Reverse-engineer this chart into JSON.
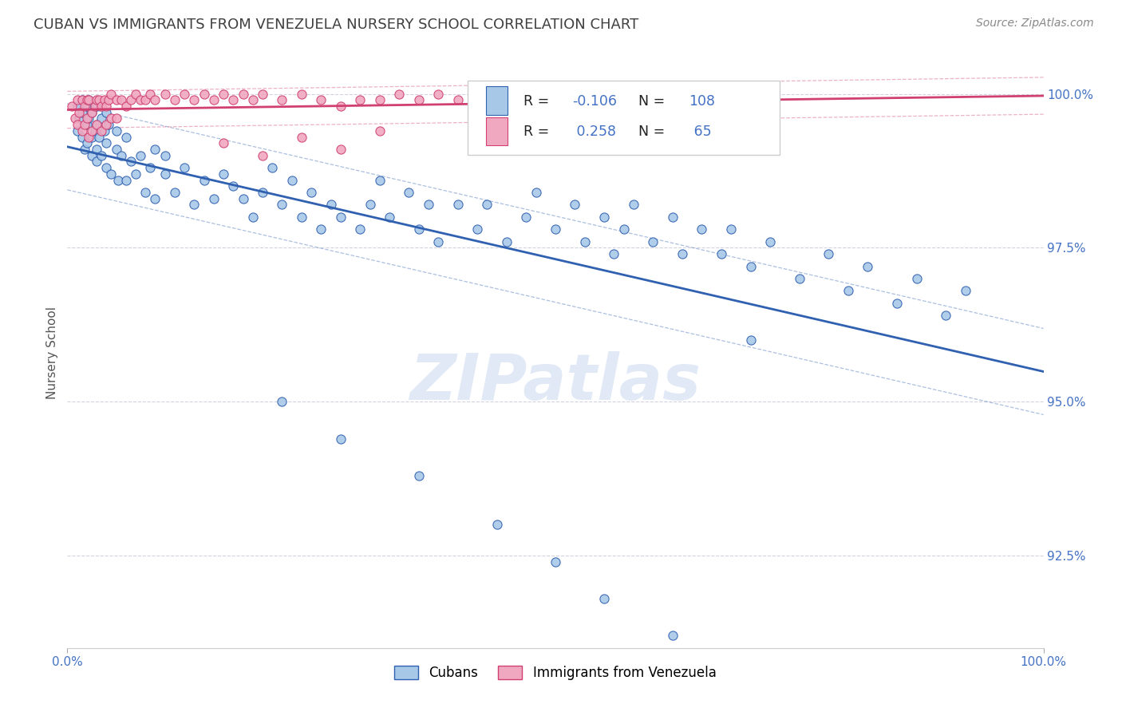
{
  "title": "CUBAN VS IMMIGRANTS FROM VENEZUELA NURSERY SCHOOL CORRELATION CHART",
  "source_text": "Source: ZipAtlas.com",
  "ylabel": "Nursery School",
  "legend_label1": "Cubans",
  "legend_label2": "Immigrants from Venezuela",
  "R1": -0.106,
  "N1": 108,
  "R2": 0.258,
  "N2": 65,
  "color1": "#a8c8e8",
  "color2": "#f0a8c0",
  "line_color1": "#3060b0",
  "line_color2": "#d04070",
  "background_color": "#ffffff",
  "plot_bg_color": "#ffffff",
  "grid_color": "#c8c8d8",
  "title_color": "#404040",
  "title_fontsize": 13,
  "axis_label_color": "#4472c4",
  "xmin": 0.0,
  "xmax": 1.0,
  "ymin": 0.91,
  "ymax": 1.006,
  "yticks": [
    0.925,
    0.95,
    0.975,
    1.0
  ],
  "ytick_labels": [
    "92.5%",
    "95.0%",
    "97.5%",
    "100.0%"
  ],
  "xticks": [
    0.0,
    1.0
  ],
  "xtick_labels": [
    "0.0%",
    "100.0%"
  ],
  "cubans_x": [
    0.01,
    0.01,
    0.012,
    0.015,
    0.015,
    0.015,
    0.018,
    0.02,
    0.02,
    0.02,
    0.022,
    0.022,
    0.025,
    0.025,
    0.025,
    0.028,
    0.028,
    0.03,
    0.03,
    0.03,
    0.03,
    0.032,
    0.035,
    0.035,
    0.038,
    0.04,
    0.04,
    0.04,
    0.042,
    0.045,
    0.05,
    0.05,
    0.052,
    0.055,
    0.06,
    0.06,
    0.065,
    0.07,
    0.075,
    0.08,
    0.085,
    0.09,
    0.09,
    0.1,
    0.1,
    0.11,
    0.12,
    0.13,
    0.14,
    0.15,
    0.16,
    0.17,
    0.18,
    0.19,
    0.2,
    0.21,
    0.22,
    0.23,
    0.24,
    0.25,
    0.26,
    0.27,
    0.28,
    0.3,
    0.31,
    0.32,
    0.33,
    0.35,
    0.36,
    0.37,
    0.38,
    0.4,
    0.42,
    0.43,
    0.45,
    0.47,
    0.48,
    0.5,
    0.52,
    0.53,
    0.55,
    0.56,
    0.57,
    0.58,
    0.6,
    0.62,
    0.63,
    0.65,
    0.67,
    0.68,
    0.7,
    0.72,
    0.75,
    0.78,
    0.8,
    0.82,
    0.85,
    0.87,
    0.9,
    0.92,
    0.22,
    0.28,
    0.36,
    0.44,
    0.5,
    0.55,
    0.62,
    0.7
  ],
  "cubans_y": [
    0.998,
    0.994,
    0.996,
    0.993,
    0.997,
    0.999,
    0.991,
    0.995,
    0.998,
    0.992,
    0.996,
    0.999,
    0.993,
    0.997,
    0.99,
    0.994,
    0.998,
    0.991,
    0.995,
    0.998,
    0.989,
    0.993,
    0.996,
    0.99,
    0.994,
    0.997,
    0.988,
    0.992,
    0.995,
    0.987,
    0.991,
    0.994,
    0.986,
    0.99,
    0.993,
    0.986,
    0.989,
    0.987,
    0.99,
    0.984,
    0.988,
    0.991,
    0.983,
    0.987,
    0.99,
    0.984,
    0.988,
    0.982,
    0.986,
    0.983,
    0.987,
    0.985,
    0.983,
    0.98,
    0.984,
    0.988,
    0.982,
    0.986,
    0.98,
    0.984,
    0.978,
    0.982,
    0.98,
    0.978,
    0.982,
    0.986,
    0.98,
    0.984,
    0.978,
    0.982,
    0.976,
    0.982,
    0.978,
    0.982,
    0.976,
    0.98,
    0.984,
    0.978,
    0.982,
    0.976,
    0.98,
    0.974,
    0.978,
    0.982,
    0.976,
    0.98,
    0.974,
    0.978,
    0.974,
    0.978,
    0.972,
    0.976,
    0.97,
    0.974,
    0.968,
    0.972,
    0.966,
    0.97,
    0.964,
    0.968,
    0.95,
    0.944,
    0.938,
    0.93,
    0.924,
    0.918,
    0.912,
    0.96
  ],
  "venezuela_x": [
    0.005,
    0.008,
    0.01,
    0.01,
    0.012,
    0.015,
    0.015,
    0.018,
    0.018,
    0.02,
    0.02,
    0.022,
    0.022,
    0.025,
    0.025,
    0.028,
    0.03,
    0.03,
    0.032,
    0.035,
    0.035,
    0.038,
    0.04,
    0.04,
    0.042,
    0.045,
    0.045,
    0.05,
    0.05,
    0.055,
    0.06,
    0.065,
    0.07,
    0.075,
    0.08,
    0.085,
    0.09,
    0.1,
    0.11,
    0.12,
    0.13,
    0.14,
    0.15,
    0.16,
    0.17,
    0.18,
    0.19,
    0.2,
    0.22,
    0.24,
    0.26,
    0.28,
    0.3,
    0.32,
    0.34,
    0.36,
    0.38,
    0.4,
    0.42,
    0.44,
    0.16,
    0.24,
    0.32,
    0.28,
    0.2
  ],
  "venezuela_y": [
    0.998,
    0.996,
    0.999,
    0.995,
    0.997,
    0.999,
    0.994,
    0.998,
    0.995,
    0.999,
    0.996,
    0.999,
    0.993,
    0.997,
    0.994,
    0.998,
    0.999,
    0.995,
    0.999,
    0.998,
    0.994,
    0.999,
    0.998,
    0.995,
    0.999,
    1.0,
    0.996,
    0.999,
    0.996,
    0.999,
    0.998,
    0.999,
    1.0,
    0.999,
    0.999,
    1.0,
    0.999,
    1.0,
    0.999,
    1.0,
    0.999,
    1.0,
    0.999,
    1.0,
    0.999,
    1.0,
    0.999,
    1.0,
    0.999,
    1.0,
    0.999,
    0.998,
    0.999,
    0.999,
    1.0,
    0.999,
    1.0,
    0.999,
    0.998,
    0.999,
    0.992,
    0.993,
    0.994,
    0.991,
    0.99
  ]
}
